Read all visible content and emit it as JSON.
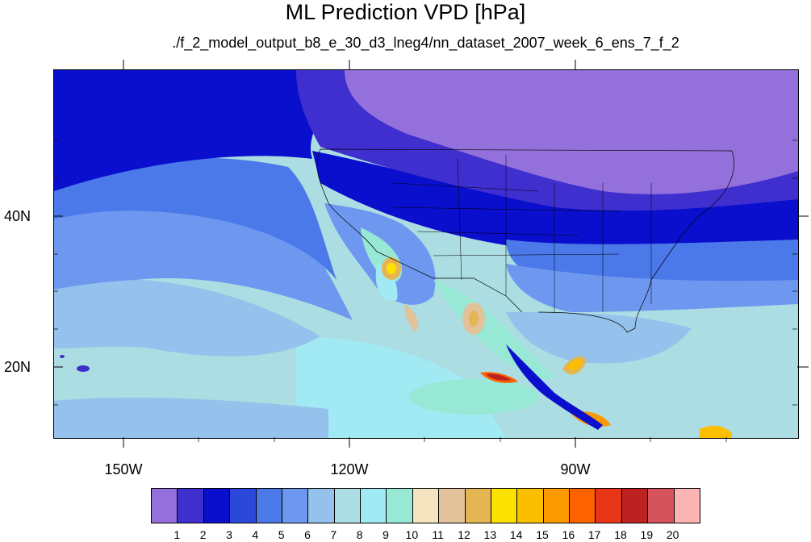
{
  "title": "ML Prediction VPD [hPa]",
  "subtitle": "./f_2_model_output_b8_e_30_d3_lneg4/nn_dataset_2007_week_6_ens_7_f_2",
  "map": {
    "lat_labels": [
      "40N",
      "20N"
    ],
    "lon_labels": [
      "150W",
      "120W",
      "90W"
    ]
  },
  "colorbar": {
    "colors": [
      "#9370db",
      "#3f2fcf",
      "#0a0fcd",
      "#2b48db",
      "#4b79e9",
      "#6e98f0",
      "#94c2ec",
      "#abdde2",
      "#a2eaf3",
      "#98e8d6",
      "#f4e4c0",
      "#e1c29a",
      "#e6b553",
      "#fce000",
      "#fcbf00",
      "#fc9800",
      "#fc6200",
      "#e73517",
      "#bd2222",
      "#d5535b",
      "#fcb4b4"
    ],
    "labels": [
      "1",
      "2",
      "3",
      "4",
      "5",
      "6",
      "7",
      "8",
      "9",
      "10",
      "11",
      "12",
      "13",
      "14",
      "15",
      "16",
      "17",
      "18",
      "19",
      "20"
    ]
  }
}
